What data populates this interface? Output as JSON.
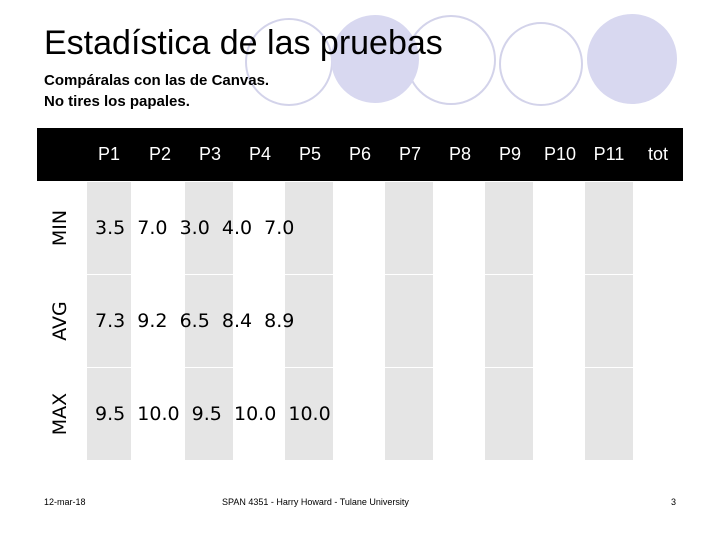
{
  "slide": {
    "title": "Estadística de las pruebas",
    "subtitle_lines": [
      "Compáralas con las de Canvas.",
      "No tires los papales."
    ]
  },
  "grades_table": {
    "columns": [
      "P1",
      "P2",
      "P3",
      "P4",
      "P5",
      "P6",
      "P7",
      "P8",
      "P9",
      "P10",
      "P11",
      "tot"
    ],
    "rows": [
      {
        "label": "MIN",
        "values_text": "3.5  7.0  3.0  4.0  7.0"
      },
      {
        "label": "AVG",
        "values_text": "7.3  9.2  6.5  8.4  8.9"
      },
      {
        "label": "MAX",
        "values_text": "9.5  10.0  9.5  10.0  10.0"
      }
    ]
  },
  "footer": {
    "date": "12-mar-18",
    "course": "SPAN 4351 - Harry Howard - Tulane University",
    "page_number": "3"
  },
  "colors": {
    "header_background": "#000000",
    "column_stripe": "#e5e5e5",
    "decor_circle_fill": "#d8d8f0",
    "decor_circle_stroke": "#d0d0e8"
  }
}
